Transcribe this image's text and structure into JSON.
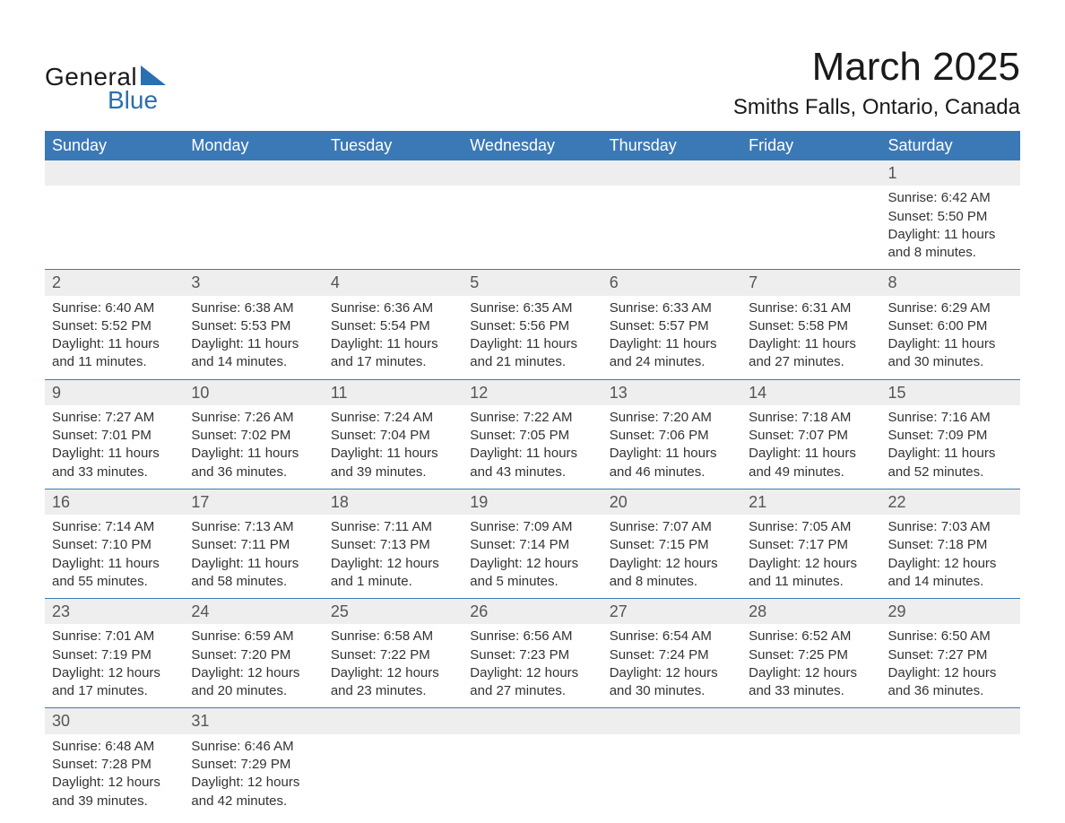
{
  "logo": {
    "line1": "General",
    "line2": "Blue",
    "accent_color": "#2c6fb0"
  },
  "title": {
    "month": "March 2025",
    "location": "Smiths Falls, Ontario, Canada"
  },
  "colors": {
    "header_bg": "#3b79b6",
    "header_text": "#ffffff",
    "daynum_bg": "#eeeeee",
    "row_divider": "#3b79b6",
    "body_text": "#333333"
  },
  "typography": {
    "month_title_fontsize": 44,
    "location_fontsize": 24,
    "weekday_fontsize": 18,
    "daynum_fontsize": 18,
    "cell_fontsize": 15
  },
  "weekdays": [
    "Sunday",
    "Monday",
    "Tuesday",
    "Wednesday",
    "Thursday",
    "Friday",
    "Saturday"
  ],
  "weeks": [
    [
      null,
      null,
      null,
      null,
      null,
      null,
      {
        "n": "1",
        "sr": "Sunrise: 6:42 AM",
        "ss": "Sunset: 5:50 PM",
        "d1": "Daylight: 11 hours",
        "d2": "and 8 minutes."
      }
    ],
    [
      {
        "n": "2",
        "sr": "Sunrise: 6:40 AM",
        "ss": "Sunset: 5:52 PM",
        "d1": "Daylight: 11 hours",
        "d2": "and 11 minutes."
      },
      {
        "n": "3",
        "sr": "Sunrise: 6:38 AM",
        "ss": "Sunset: 5:53 PM",
        "d1": "Daylight: 11 hours",
        "d2": "and 14 minutes."
      },
      {
        "n": "4",
        "sr": "Sunrise: 6:36 AM",
        "ss": "Sunset: 5:54 PM",
        "d1": "Daylight: 11 hours",
        "d2": "and 17 minutes."
      },
      {
        "n": "5",
        "sr": "Sunrise: 6:35 AM",
        "ss": "Sunset: 5:56 PM",
        "d1": "Daylight: 11 hours",
        "d2": "and 21 minutes."
      },
      {
        "n": "6",
        "sr": "Sunrise: 6:33 AM",
        "ss": "Sunset: 5:57 PM",
        "d1": "Daylight: 11 hours",
        "d2": "and 24 minutes."
      },
      {
        "n": "7",
        "sr": "Sunrise: 6:31 AM",
        "ss": "Sunset: 5:58 PM",
        "d1": "Daylight: 11 hours",
        "d2": "and 27 minutes."
      },
      {
        "n": "8",
        "sr": "Sunrise: 6:29 AM",
        "ss": "Sunset: 6:00 PM",
        "d1": "Daylight: 11 hours",
        "d2": "and 30 minutes."
      }
    ],
    [
      {
        "n": "9",
        "sr": "Sunrise: 7:27 AM",
        "ss": "Sunset: 7:01 PM",
        "d1": "Daylight: 11 hours",
        "d2": "and 33 minutes."
      },
      {
        "n": "10",
        "sr": "Sunrise: 7:26 AM",
        "ss": "Sunset: 7:02 PM",
        "d1": "Daylight: 11 hours",
        "d2": "and 36 minutes."
      },
      {
        "n": "11",
        "sr": "Sunrise: 7:24 AM",
        "ss": "Sunset: 7:04 PM",
        "d1": "Daylight: 11 hours",
        "d2": "and 39 minutes."
      },
      {
        "n": "12",
        "sr": "Sunrise: 7:22 AM",
        "ss": "Sunset: 7:05 PM",
        "d1": "Daylight: 11 hours",
        "d2": "and 43 minutes."
      },
      {
        "n": "13",
        "sr": "Sunrise: 7:20 AM",
        "ss": "Sunset: 7:06 PM",
        "d1": "Daylight: 11 hours",
        "d2": "and 46 minutes."
      },
      {
        "n": "14",
        "sr": "Sunrise: 7:18 AM",
        "ss": "Sunset: 7:07 PM",
        "d1": "Daylight: 11 hours",
        "d2": "and 49 minutes."
      },
      {
        "n": "15",
        "sr": "Sunrise: 7:16 AM",
        "ss": "Sunset: 7:09 PM",
        "d1": "Daylight: 11 hours",
        "d2": "and 52 minutes."
      }
    ],
    [
      {
        "n": "16",
        "sr": "Sunrise: 7:14 AM",
        "ss": "Sunset: 7:10 PM",
        "d1": "Daylight: 11 hours",
        "d2": "and 55 minutes."
      },
      {
        "n": "17",
        "sr": "Sunrise: 7:13 AM",
        "ss": "Sunset: 7:11 PM",
        "d1": "Daylight: 11 hours",
        "d2": "and 58 minutes."
      },
      {
        "n": "18",
        "sr": "Sunrise: 7:11 AM",
        "ss": "Sunset: 7:13 PM",
        "d1": "Daylight: 12 hours",
        "d2": "and 1 minute."
      },
      {
        "n": "19",
        "sr": "Sunrise: 7:09 AM",
        "ss": "Sunset: 7:14 PM",
        "d1": "Daylight: 12 hours",
        "d2": "and 5 minutes."
      },
      {
        "n": "20",
        "sr": "Sunrise: 7:07 AM",
        "ss": "Sunset: 7:15 PM",
        "d1": "Daylight: 12 hours",
        "d2": "and 8 minutes."
      },
      {
        "n": "21",
        "sr": "Sunrise: 7:05 AM",
        "ss": "Sunset: 7:17 PM",
        "d1": "Daylight: 12 hours",
        "d2": "and 11 minutes."
      },
      {
        "n": "22",
        "sr": "Sunrise: 7:03 AM",
        "ss": "Sunset: 7:18 PM",
        "d1": "Daylight: 12 hours",
        "d2": "and 14 minutes."
      }
    ],
    [
      {
        "n": "23",
        "sr": "Sunrise: 7:01 AM",
        "ss": "Sunset: 7:19 PM",
        "d1": "Daylight: 12 hours",
        "d2": "and 17 minutes."
      },
      {
        "n": "24",
        "sr": "Sunrise: 6:59 AM",
        "ss": "Sunset: 7:20 PM",
        "d1": "Daylight: 12 hours",
        "d2": "and 20 minutes."
      },
      {
        "n": "25",
        "sr": "Sunrise: 6:58 AM",
        "ss": "Sunset: 7:22 PM",
        "d1": "Daylight: 12 hours",
        "d2": "and 23 minutes."
      },
      {
        "n": "26",
        "sr": "Sunrise: 6:56 AM",
        "ss": "Sunset: 7:23 PM",
        "d1": "Daylight: 12 hours",
        "d2": "and 27 minutes."
      },
      {
        "n": "27",
        "sr": "Sunrise: 6:54 AM",
        "ss": "Sunset: 7:24 PM",
        "d1": "Daylight: 12 hours",
        "d2": "and 30 minutes."
      },
      {
        "n": "28",
        "sr": "Sunrise: 6:52 AM",
        "ss": "Sunset: 7:25 PM",
        "d1": "Daylight: 12 hours",
        "d2": "and 33 minutes."
      },
      {
        "n": "29",
        "sr": "Sunrise: 6:50 AM",
        "ss": "Sunset: 7:27 PM",
        "d1": "Daylight: 12 hours",
        "d2": "and 36 minutes."
      }
    ],
    [
      {
        "n": "30",
        "sr": "Sunrise: 6:48 AM",
        "ss": "Sunset: 7:28 PM",
        "d1": "Daylight: 12 hours",
        "d2": "and 39 minutes."
      },
      {
        "n": "31",
        "sr": "Sunrise: 6:46 AM",
        "ss": "Sunset: 7:29 PM",
        "d1": "Daylight: 12 hours",
        "d2": "and 42 minutes."
      },
      null,
      null,
      null,
      null,
      null
    ]
  ]
}
